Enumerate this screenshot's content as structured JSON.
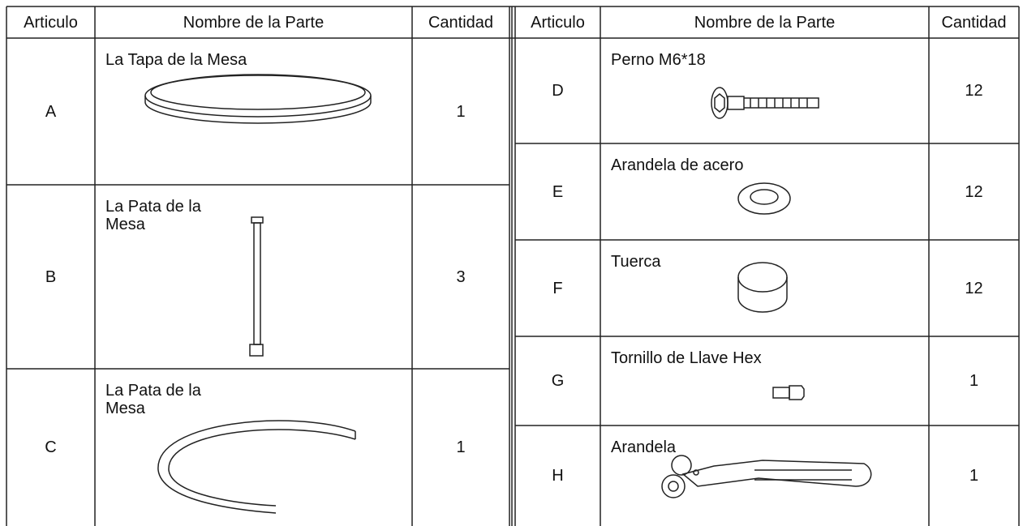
{
  "left_table": {
    "header": [
      "Articulo",
      "Nombre de la Parte",
      "Cantidad"
    ],
    "rows": [
      {
        "item": "A",
        "name": "La Tapa de la Mesa",
        "quantity": 1
      },
      {
        "item": "B",
        "name": "La Pata de la\nMesa",
        "quantity": 3
      },
      {
        "item": "C",
        "name": "La Pata de la\nMesa",
        "quantity": 1
      }
    ]
  },
  "right_table": {
    "header": [
      "Articulo",
      "Nombre de la Parte",
      "Cantidad"
    ],
    "rows": [
      {
        "item": "D",
        "name": "Perno M6*18",
        "quantity": 12
      },
      {
        "item": "E",
        "name": "Arandela de acero",
        "quantity": 12
      },
      {
        "item": "F",
        "name": "Tuerca",
        "quantity": 12
      },
      {
        "item": "G",
        "name": "Tornillo de Llave Hex",
        "quantity": 1
      },
      {
        "item": "H",
        "name": "Arandela",
        "quantity": 1
      }
    ]
  }
}
